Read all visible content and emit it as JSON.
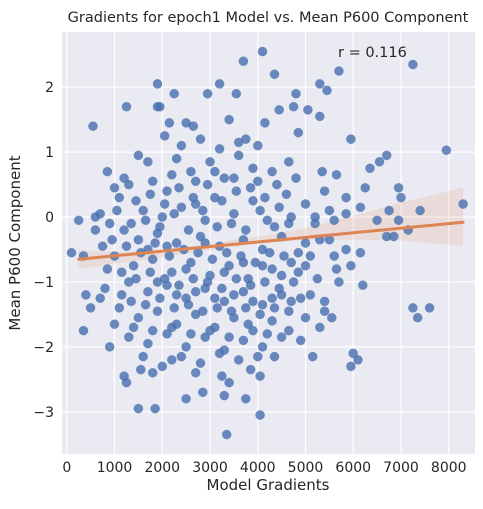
{
  "chart_data": {
    "type": "scatter",
    "title": "Gradients for epoch1 Model vs. Mean P600 Component",
    "xlabel": "Model Gradients",
    "ylabel": "Mean P600 Component",
    "xlim": [
      -100,
      8550
    ],
    "ylim": [
      -3.65,
      2.85
    ],
    "x_ticks": [
      0,
      1000,
      2000,
      3000,
      4000,
      5000,
      6000,
      7000,
      8000
    ],
    "y_ticks": [
      -3,
      -2,
      -1,
      0,
      1,
      2
    ],
    "x_tick_labels": [
      "0",
      "1000",
      "2000",
      "3000",
      "4000",
      "5000",
      "6000",
      "7000",
      "8000"
    ],
    "y_tick_labels": [
      "−3",
      "−2",
      "−1",
      "0",
      "1",
      "2"
    ],
    "annotation": "r = 0.116",
    "grid": true,
    "point_color": "#4c72b0",
    "regression_color": "#dd8452",
    "plot_background": "#eaeaf2",
    "regression": {
      "x_start": 250,
      "x_end": 8300,
      "y_start": -0.65,
      "y_end": -0.08
    },
    "confidence_band": [
      {
        "x": 250,
        "lower": -0.8,
        "upper": -0.5
      },
      {
        "x": 1000,
        "lower": -0.72,
        "upper": -0.54
      },
      {
        "x": 2000,
        "lower": -0.62,
        "upper": -0.5
      },
      {
        "x": 3000,
        "lower": -0.51,
        "upper": -0.41
      },
      {
        "x": 4000,
        "lower": -0.41,
        "upper": -0.3
      },
      {
        "x": 5000,
        "lower": -0.35,
        "upper": -0.17
      },
      {
        "x": 6000,
        "lower": -0.35,
        "upper": 0.02
      },
      {
        "x": 7000,
        "lower": -0.36,
        "upper": 0.22
      },
      {
        "x": 8300,
        "lower": -0.45,
        "upper": 0.45
      }
    ],
    "points": [
      [
        4100,
        2.55
      ],
      [
        3700,
        2.4
      ],
      [
        3200,
        2.05
      ],
      [
        1900,
        2.05
      ],
      [
        2250,
        1.9
      ],
      [
        4350,
        2.2
      ],
      [
        5700,
        2.25
      ],
      [
        7250,
        2.35
      ],
      [
        5300,
        2.05
      ],
      [
        5450,
        1.95
      ],
      [
        4800,
        1.9
      ],
      [
        2950,
        1.9
      ],
      [
        3550,
        1.9
      ],
      [
        1250,
        1.7
      ],
      [
        1900,
        1.7
      ],
      [
        4750,
        1.7
      ],
      [
        4450,
        1.65
      ],
      [
        1950,
        1.7
      ],
      [
        2150,
        1.45
      ],
      [
        2500,
        1.45
      ],
      [
        3400,
        1.5
      ],
      [
        4150,
        1.45
      ],
      [
        5050,
        1.65
      ],
      [
        5300,
        1.55
      ],
      [
        2650,
        1.4
      ],
      [
        550,
        1.4
      ],
      [
        2050,
        1.25
      ],
      [
        3750,
        1.2
      ],
      [
        4850,
        1.3
      ],
      [
        5950,
        1.2
      ],
      [
        7950,
        1.03
      ],
      [
        6700,
        0.95
      ],
      [
        6550,
        0.85
      ],
      [
        4650,
        0.85
      ],
      [
        5350,
        0.7
      ],
      [
        5650,
        0.65
      ],
      [
        6350,
        0.75
      ],
      [
        850,
        0.7
      ],
      [
        6250,
        0.45
      ],
      [
        5850,
        0.3
      ],
      [
        6950,
        0.45
      ],
      [
        7000,
        0.3
      ],
      [
        8300,
        0.2
      ],
      [
        7400,
        0.1
      ],
      [
        6750,
        0.1
      ],
      [
        6150,
        0.15
      ],
      [
        5850,
        0.05
      ],
      [
        6500,
        -0.05
      ],
      [
        6950,
        -0.05
      ],
      [
        7150,
        -0.2
      ],
      [
        6700,
        -0.3
      ],
      [
        6850,
        -0.3
      ],
      [
        6150,
        -0.55
      ],
      [
        5850,
        -0.5
      ],
      [
        5950,
        -0.75
      ],
      [
        5650,
        -0.8
      ],
      [
        5250,
        -0.95
      ],
      [
        4850,
        -0.85
      ],
      [
        400,
        -1.2
      ],
      [
        6200,
        -1.05
      ],
      [
        800,
        -1.1
      ],
      [
        350,
        -1.75
      ],
      [
        900,
        -2.0
      ],
      [
        500,
        -1.4
      ],
      [
        1000,
        -1.65
      ],
      [
        7250,
        -1.4
      ],
      [
        7600,
        -1.4
      ],
      [
        7350,
        -1.55
      ],
      [
        6000,
        -2.1
      ],
      [
        5950,
        -2.3
      ],
      [
        6100,
        -2.2
      ],
      [
        5150,
        -2.15
      ],
      [
        5550,
        -1.55
      ],
      [
        5300,
        -1.7
      ],
      [
        4650,
        -1.75
      ],
      [
        4350,
        -2.15
      ],
      [
        4050,
        -2.45
      ],
      [
        3750,
        -2.8
      ],
      [
        3400,
        -2.55
      ],
      [
        2850,
        -2.7
      ],
      [
        2500,
        -2.8
      ],
      [
        1500,
        -2.95
      ],
      [
        1850,
        -2.95
      ],
      [
        3300,
        -2.75
      ],
      [
        4050,
        -3.05
      ],
      [
        3350,
        -3.35
      ],
      [
        1200,
        -2.45
      ],
      [
        1250,
        -2.55
      ],
      [
        1550,
        -2.35
      ],
      [
        1800,
        -2.4
      ],
      [
        2200,
        -2.2
      ],
      [
        2700,
        -2.4
      ],
      [
        3250,
        -2.45
      ],
      [
        3850,
        -2.35
      ],
      [
        100,
        -0.55
      ],
      [
        350,
        -0.6
      ],
      [
        750,
        -0.45
      ],
      [
        600,
        -0.2
      ],
      [
        250,
        -0.05
      ],
      [
        900,
        -0.1
      ],
      [
        700,
        0.05
      ],
      [
        1700,
        0.85
      ],
      [
        1500,
        0.95
      ],
      [
        1800,
        0.55
      ],
      [
        2300,
        0.9
      ],
      [
        2600,
        0.7
      ],
      [
        3000,
        0.85
      ],
      [
        3600,
        0.95
      ],
      [
        3300,
        0.6
      ],
      [
        4000,
        0.55
      ],
      [
        4300,
        0.7
      ],
      [
        2100,
        0.4
      ],
      [
        1300,
        0.5
      ],
      [
        1100,
        0.3
      ],
      [
        2700,
        0.2
      ],
      [
        3100,
        0.3
      ],
      [
        3900,
        0.25
      ],
      [
        4600,
        0.35
      ],
      [
        5000,
        0.2
      ],
      [
        5400,
        0.4
      ],
      [
        1600,
        0.1
      ],
      [
        2000,
        0.0
      ],
      [
        2400,
        0.15
      ],
      [
        2900,
        -0.05
      ],
      [
        3500,
        0.05
      ],
      [
        4200,
        -0.05
      ],
      [
        4700,
        0.0
      ],
      [
        5200,
        -0.1
      ],
      [
        5600,
        -0.05
      ],
      [
        1200,
        -0.2
      ],
      [
        1500,
        -0.35
      ],
      [
        1900,
        -0.25
      ],
      [
        2300,
        -0.4
      ],
      [
        2800,
        -0.3
      ],
      [
        3200,
        -0.45
      ],
      [
        3700,
        -0.35
      ],
      [
        4100,
        -0.5
      ],
      [
        4500,
        -0.3
      ],
      [
        5000,
        -0.4
      ],
      [
        5500,
        -0.35
      ],
      [
        1000,
        -0.6
      ],
      [
        1400,
        -0.75
      ],
      [
        1800,
        -0.65
      ],
      [
        2200,
        -0.85
      ],
      [
        2600,
        -0.7
      ],
      [
        3000,
        -0.9
      ],
      [
        3400,
        -0.75
      ],
      [
        3800,
        -0.95
      ],
      [
        4300,
        -0.8
      ],
      [
        4700,
        -0.7
      ],
      [
        5100,
        -0.6
      ],
      [
        1300,
        -1.0
      ],
      [
        1700,
        -1.15
      ],
      [
        2100,
        -1.05
      ],
      [
        2500,
        -1.25
      ],
      [
        2900,
        -1.1
      ],
      [
        3300,
        -1.3
      ],
      [
        3700,
        -1.15
      ],
      [
        4100,
        -1.35
      ],
      [
        4500,
        -1.2
      ],
      [
        4900,
        -1.25
      ],
      [
        1100,
        -1.4
      ],
      [
        1500,
        -1.55
      ],
      [
        1900,
        -1.45
      ],
      [
        2300,
        -1.65
      ],
      [
        2700,
        -1.5
      ],
      [
        3100,
        -1.7
      ],
      [
        3500,
        -1.55
      ],
      [
        3900,
        -1.75
      ],
      [
        4300,
        -1.6
      ],
      [
        1300,
        -1.85
      ],
      [
        1700,
        -1.95
      ],
      [
        2100,
        -1.8
      ],
      [
        2500,
        -2.0
      ],
      [
        2900,
        -1.85
      ],
      [
        3300,
        -2.05
      ],
      [
        3700,
        -1.9
      ],
      [
        4100,
        -2.0
      ],
      [
        4500,
        -1.85
      ],
      [
        1600,
        -2.15
      ],
      [
        2000,
        -2.3
      ],
      [
        2400,
        -2.15
      ],
      [
        2800,
        -2.25
      ],
      [
        3200,
        -2.1
      ],
      [
        3600,
        -2.2
      ],
      [
        4000,
        -2.15
      ],
      [
        1450,
        0.25
      ],
      [
        1750,
        0.35
      ],
      [
        2050,
        0.2
      ],
      [
        2350,
        0.45
      ],
      [
        2650,
        0.3
      ],
      [
        2950,
        0.5
      ],
      [
        3250,
        0.25
      ],
      [
        3550,
        0.4
      ],
      [
        3850,
        0.45
      ],
      [
        4150,
        0.3
      ],
      [
        4450,
        0.15
      ],
      [
        1350,
        -0.1
      ],
      [
        1650,
        -0.05
      ],
      [
        1950,
        -0.15
      ],
      [
        2250,
        0.05
      ],
      [
        2550,
        -0.2
      ],
      [
        2850,
        0.1
      ],
      [
        3150,
        -0.15
      ],
      [
        3450,
        -0.1
      ],
      [
        3750,
        -0.2
      ],
      [
        4050,
        0.1
      ],
      [
        4350,
        -0.15
      ],
      [
        4650,
        -0.1
      ],
      [
        1250,
        -0.45
      ],
      [
        1550,
        -0.55
      ],
      [
        1850,
        -0.4
      ],
      [
        2150,
        -0.6
      ],
      [
        2450,
        -0.5
      ],
      [
        2750,
        -0.55
      ],
      [
        3050,
        -0.65
      ],
      [
        3350,
        -0.55
      ],
      [
        3650,
        -0.6
      ],
      [
        3950,
        -0.7
      ],
      [
        4250,
        -0.55
      ],
      [
        4550,
        -0.6
      ],
      [
        4850,
        -0.55
      ],
      [
        1150,
        -0.85
      ],
      [
        1450,
        -0.95
      ],
      [
        1750,
        -0.85
      ],
      [
        2050,
        -0.95
      ],
      [
        2350,
        -1.05
      ],
      [
        2650,
        -0.95
      ],
      [
        2950,
        -1.0
      ],
      [
        3250,
        -1.1
      ],
      [
        3550,
        -0.95
      ],
      [
        3850,
        -1.05
      ],
      [
        4150,
        -1.0
      ],
      [
        4450,
        -1.1
      ],
      [
        4750,
        -1.0
      ],
      [
        1350,
        -1.3
      ],
      [
        1650,
        -1.35
      ],
      [
        1950,
        -1.25
      ],
      [
        2250,
        -1.4
      ],
      [
        2550,
        -1.35
      ],
      [
        2850,
        -1.45
      ],
      [
        3150,
        -1.4
      ],
      [
        3450,
        -1.45
      ],
      [
        3750,
        -1.4
      ],
      [
        4050,
        -1.5
      ],
      [
        4350,
        -1.4
      ],
      [
        4650,
        -1.45
      ],
      [
        1400,
        -1.7
      ],
      [
        1800,
        -1.75
      ],
      [
        2200,
        -1.7
      ],
      [
        2600,
        -1.8
      ],
      [
        3000,
        -1.75
      ],
      [
        3400,
        -1.85
      ],
      [
        3800,
        -1.65
      ],
      [
        4200,
        -1.8
      ],
      [
        2400,
        1.1
      ],
      [
        2800,
        1.2
      ],
      [
        3200,
        1.05
      ],
      [
        3600,
        1.15
      ],
      [
        4000,
        1.1
      ],
      [
        2200,
        0.65
      ],
      [
        2700,
        0.55
      ],
      [
        3100,
        0.7
      ],
      [
        3500,
        0.6
      ],
      [
        3900,
        0.75
      ],
      [
        4400,
        0.5
      ],
      [
        4800,
        0.6
      ],
      [
        1700,
        -0.5
      ],
      [
        2100,
        -0.45
      ],
      [
        2500,
        -0.8
      ],
      [
        2900,
        -0.4
      ],
      [
        3300,
        -0.85
      ],
      [
        3700,
        -0.7
      ],
      [
        4100,
        -0.75
      ],
      [
        4500,
        -0.9
      ],
      [
        1900,
        -1.0
      ],
      [
        2300,
        -1.2
      ],
      [
        2700,
        -1.15
      ],
      [
        3100,
        -1.25
      ],
      [
        3500,
        -1.2
      ],
      [
        3900,
        -1.3
      ],
      [
        4300,
        -1.25
      ],
      [
        4700,
        -1.3
      ],
      [
        5100,
        -1.2
      ],
      [
        5400,
        -1.3
      ],
      [
        5200,
        0.0
      ],
      [
        5500,
        0.1
      ],
      [
        5300,
        -0.35
      ],
      [
        5600,
        -0.6
      ],
      [
        5000,
        -0.75
      ],
      [
        5700,
        -1.0
      ],
      [
        5400,
        -1.45
      ],
      [
        5000,
        -1.55
      ],
      [
        4900,
        -1.9
      ],
      [
        950,
        -0.35
      ],
      [
        1050,
        0.1
      ],
      [
        850,
        -0.8
      ],
      [
        1150,
        -1.2
      ],
      [
        700,
        -1.25
      ],
      [
        1200,
        0.6
      ],
      [
        1000,
        0.45
      ],
      [
        600,
        0.0
      ]
    ]
  }
}
